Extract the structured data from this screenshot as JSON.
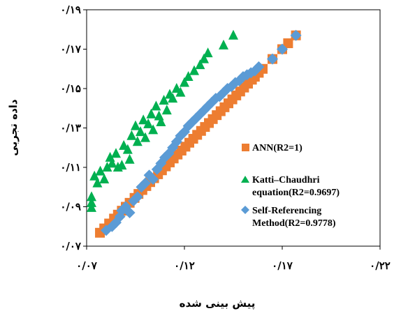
{
  "chart_data": {
    "type": "scatter",
    "xlabel": "پیش بینی شده",
    "ylabel": "داده تجربی",
    "xlim": [
      0.07,
      0.22
    ],
    "ylim": [
      0.07,
      0.19
    ],
    "x_ticks": [
      {
        "value": 0.07,
        "label": "۰/۰۷"
      },
      {
        "value": 0.12,
        "label": "۰/۱۲"
      },
      {
        "value": 0.17,
        "label": "۰/۱۷"
      },
      {
        "value": 0.22,
        "label": "۰/۲۲"
      }
    ],
    "y_ticks": [
      {
        "value": 0.07,
        "label": "۰/۰۷"
      },
      {
        "value": 0.09,
        "label": "۰/۰۹"
      },
      {
        "value": 0.11,
        "label": "۰/۱۱"
      },
      {
        "value": 0.13,
        "label": "۰/۱۳"
      },
      {
        "value": 0.15,
        "label": "۰/۱۵"
      },
      {
        "value": 0.17,
        "label": "۰/۱۷"
      },
      {
        "value": 0.19,
        "label": "۰/۱۹"
      }
    ],
    "grid": false,
    "legend_position": "inside-right",
    "series": [
      {
        "name": "ANN(R2=1)",
        "marker": "square",
        "color": "#ED7D31",
        "points": [
          [
            0.0768,
            0.0768
          ],
          [
            0.079,
            0.079
          ],
          [
            0.0815,
            0.0815
          ],
          [
            0.084,
            0.084
          ],
          [
            0.086,
            0.086
          ],
          [
            0.088,
            0.088
          ],
          [
            0.09,
            0.09
          ],
          [
            0.092,
            0.092
          ],
          [
            0.0945,
            0.0945
          ],
          [
            0.0965,
            0.0965
          ],
          [
            0.0985,
            0.0985
          ],
          [
            0.1005,
            0.1005
          ],
          [
            0.1025,
            0.1025
          ],
          [
            0.1045,
            0.1045
          ],
          [
            0.1065,
            0.1065
          ],
          [
            0.1085,
            0.1085
          ],
          [
            0.1105,
            0.1105
          ],
          [
            0.1125,
            0.1125
          ],
          [
            0.1145,
            0.1145
          ],
          [
            0.1165,
            0.1165
          ],
          [
            0.1185,
            0.1185
          ],
          [
            0.1205,
            0.1205
          ],
          [
            0.1225,
            0.1225
          ],
          [
            0.1245,
            0.1245
          ],
          [
            0.1265,
            0.1265
          ],
          [
            0.1285,
            0.1285
          ],
          [
            0.1305,
            0.1305
          ],
          [
            0.1325,
            0.1325
          ],
          [
            0.1345,
            0.1345
          ],
          [
            0.1365,
            0.1365
          ],
          [
            0.1385,
            0.1385
          ],
          [
            0.1405,
            0.1405
          ],
          [
            0.1425,
            0.1425
          ],
          [
            0.1445,
            0.1445
          ],
          [
            0.1465,
            0.1465
          ],
          [
            0.1485,
            0.1485
          ],
          [
            0.1505,
            0.1505
          ],
          [
            0.1525,
            0.1525
          ],
          [
            0.1545,
            0.1545
          ],
          [
            0.156,
            0.156
          ],
          [
            0.158,
            0.158
          ],
          [
            0.16,
            0.16
          ],
          [
            0.165,
            0.165
          ],
          [
            0.17,
            0.17
          ],
          [
            0.173,
            0.173
          ],
          [
            0.177,
            0.177
          ]
        ]
      },
      {
        "name": "Katti–Chaudhri equation(R2=0.9697)",
        "marker": "triangle",
        "color": "#00B050",
        "points": [
          [
            0.0725,
            0.0895
          ],
          [
            0.0725,
            0.092
          ],
          [
            0.0725,
            0.095
          ],
          [
            0.074,
            0.1055
          ],
          [
            0.0755,
            0.102
          ],
          [
            0.077,
            0.108
          ],
          [
            0.079,
            0.104
          ],
          [
            0.0805,
            0.11
          ],
          [
            0.082,
            0.115
          ],
          [
            0.083,
            0.112
          ],
          [
            0.085,
            0.117
          ],
          [
            0.086,
            0.11
          ],
          [
            0.088,
            0.111
          ],
          [
            0.089,
            0.121
          ],
          [
            0.091,
            0.119
          ],
          [
            0.092,
            0.114
          ],
          [
            0.093,
            0.126
          ],
          [
            0.095,
            0.131
          ],
          [
            0.096,
            0.123
          ],
          [
            0.0975,
            0.128
          ],
          [
            0.099,
            0.134
          ],
          [
            0.1,
            0.125
          ],
          [
            0.1015,
            0.132
          ],
          [
            0.103,
            0.137
          ],
          [
            0.104,
            0.129
          ],
          [
            0.1055,
            0.141
          ],
          [
            0.107,
            0.136
          ],
          [
            0.108,
            0.133
          ],
          [
            0.1095,
            0.144
          ],
          [
            0.111,
            0.139
          ],
          [
            0.1125,
            0.147
          ],
          [
            0.114,
            0.145
          ],
          [
            0.116,
            0.15
          ],
          [
            0.118,
            0.148
          ],
          [
            0.12,
            0.153
          ],
          [
            0.122,
            0.156
          ],
          [
            0.125,
            0.159
          ],
          [
            0.128,
            0.162
          ],
          [
            0.13,
            0.165
          ],
          [
            0.132,
            0.168
          ],
          [
            0.14,
            0.172
          ],
          [
            0.145,
            0.177
          ]
        ]
      },
      {
        "name": "Self-Referencing Method(R2=0.9778)",
        "marker": "diamond",
        "color": "#5B9BD5",
        "points": [
          [
            0.08,
            0.078
          ],
          [
            0.083,
            0.08
          ],
          [
            0.085,
            0.082
          ],
          [
            0.087,
            0.085
          ],
          [
            0.088,
            0.088
          ],
          [
            0.09,
            0.09
          ],
          [
            0.092,
            0.087
          ],
          [
            0.094,
            0.093
          ],
          [
            0.096,
            0.095
          ],
          [
            0.098,
            0.1
          ],
          [
            0.1,
            0.102
          ],
          [
            0.102,
            0.106
          ],
          [
            0.104,
            0.104
          ],
          [
            0.106,
            0.109
          ],
          [
            0.108,
            0.112
          ],
          [
            0.11,
            0.115
          ],
          [
            0.112,
            0.117
          ],
          [
            0.114,
            0.12
          ],
          [
            0.116,
            0.123
          ],
          [
            0.118,
            0.126
          ],
          [
            0.12,
            0.128
          ],
          [
            0.122,
            0.131
          ],
          [
            0.124,
            0.133
          ],
          [
            0.126,
            0.135
          ],
          [
            0.128,
            0.137
          ],
          [
            0.13,
            0.139
          ],
          [
            0.132,
            0.141
          ],
          [
            0.134,
            0.143
          ],
          [
            0.136,
            0.145
          ],
          [
            0.138,
            0.146
          ],
          [
            0.14,
            0.148
          ],
          [
            0.142,
            0.15
          ],
          [
            0.144,
            0.151
          ],
          [
            0.146,
            0.153
          ],
          [
            0.148,
            0.154
          ],
          [
            0.15,
            0.156
          ],
          [
            0.152,
            0.157
          ],
          [
            0.154,
            0.158
          ],
          [
            0.156,
            0.159
          ],
          [
            0.158,
            0.161
          ],
          [
            0.165,
            0.165
          ],
          [
            0.17,
            0.17
          ],
          [
            0.177,
            0.177
          ]
        ]
      }
    ]
  }
}
